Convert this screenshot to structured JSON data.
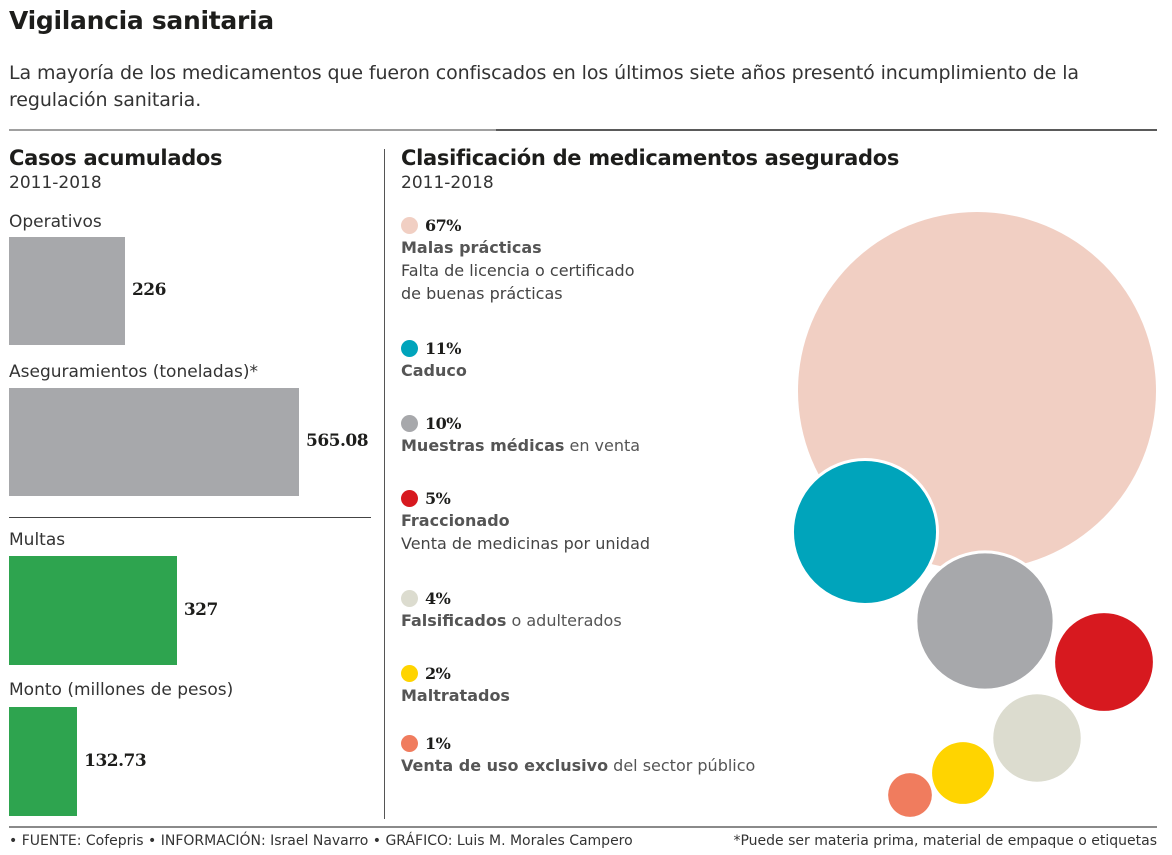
{
  "header": {
    "title": "Vigilancia sanitaria",
    "intro": "La mayoría de los medicamentos que fueron confiscados en los últimos siete años presentó incumplimiento de la regulación sanitaria."
  },
  "footer": {
    "credits": "• FUENTE: Cofepris • INFORMACIÓN: Israel Navarro • GRÁFICO: Luis M. Morales Campero",
    "note": "*Puede ser materia prima, material de empaque o etiquetas"
  },
  "colors": {
    "gray_bar": "#a7a8ab",
    "green_bar": "#2ea44f",
    "malas": "#f1cfc3",
    "caduco": "#00a4bb",
    "muestras": "#a7a8ab",
    "fraccionado": "#d7191f",
    "falsificados": "#dcdccf",
    "maltratados": "#ffd400",
    "exclusivo": "#f07c5e"
  },
  "chart_data": [
    {
      "type": "bar",
      "title": "Casos acumulados",
      "subtitle": "2011-2018",
      "bars": [
        {
          "label": "Operativos",
          "value": 226,
          "display": "226",
          "color_key": "gray_bar",
          "group": 1
        },
        {
          "label": "Aseguramientos (toneladas)*",
          "value": 565.08,
          "display": "565.08",
          "color_key": "gray_bar",
          "group": 1
        },
        {
          "label": "Multas",
          "value": 327,
          "display": "327",
          "color_key": "green_bar",
          "group": 2
        },
        {
          "label": "Monto (millones de pesos)",
          "value": 132.73,
          "display": "132.73",
          "color_key": "green_bar",
          "group": 2
        }
      ]
    },
    {
      "type": "bubble",
      "title": "Clasificación de medicamentos asegurados",
      "subtitle": "2011-2018",
      "unit": "%",
      "items": [
        {
          "value": 67,
          "pct": "67%",
          "name_bold": "Malas prácticas",
          "name_rest": "",
          "desc": [
            "Falta de licencia o certificado",
            "de buenas prácticas"
          ],
          "color_key": "malas"
        },
        {
          "value": 11,
          "pct": "11%",
          "name_bold": "Caduco",
          "name_rest": "",
          "desc": [],
          "color_key": "caduco"
        },
        {
          "value": 10,
          "pct": "10%",
          "name_bold": "Muestras médicas",
          "name_rest": " en venta",
          "desc": [],
          "color_key": "muestras"
        },
        {
          "value": 5,
          "pct": "5%",
          "name_bold": "Fraccionado",
          "name_rest": "",
          "desc": [
            "Venta de medicinas por unidad"
          ],
          "color_key": "fraccionado"
        },
        {
          "value": 4,
          "pct": "4%",
          "name_bold": "Falsificados",
          "name_rest": " o adulterados",
          "desc": [],
          "color_key": "falsificados"
        },
        {
          "value": 2,
          "pct": "2%",
          "name_bold": "Maltratados",
          "name_rest": "",
          "desc": [],
          "color_key": "maltratados"
        },
        {
          "value": 1,
          "pct": "1%",
          "name_bold": "Venta de uso exclusivo",
          "name_rest": " del sector público",
          "desc": [],
          "color_key": "exclusivo"
        }
      ]
    }
  ]
}
